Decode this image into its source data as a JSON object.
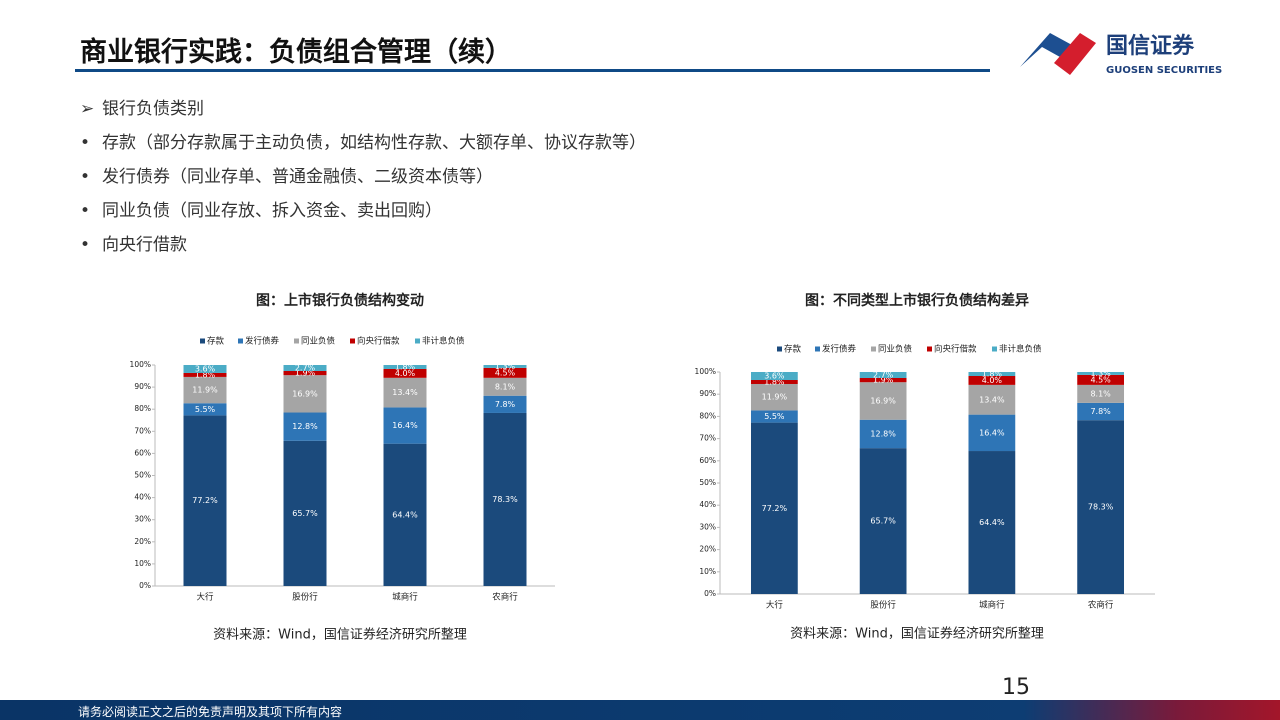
{
  "header": {
    "title": "商业银行实践：负债组合管理（续）",
    "logo_name": "国信证券",
    "logo_english": "GUOSEN SECURITIES"
  },
  "bullets": {
    "heading": "银行负债类别",
    "items": [
      "存款（部分存款属于主动负债，如结构性存款、大额存单、协议存款等）",
      "发行债券（同业存单、普通金融债、二级资本债等）",
      "同业负债（同业存放、拆入资金、卖出回购）",
      "向央行借款"
    ]
  },
  "footer": {
    "page": "15",
    "disclaimer": "请务必阅读正文之后的免责声明及其项下所有内容"
  },
  "chart_data": [
    {
      "type": "stacked_bar",
      "title": "图：上市银行负债结构变动",
      "source": "资料来源：Wind，国信证券经济研究所整理",
      "categories": [
        "大行",
        "股份行",
        "城商行",
        "农商行"
      ],
      "series": [
        {
          "name": "存款",
          "color": "#1b4a7c",
          "values": [
            77.2,
            65.7,
            64.4,
            78.3
          ],
          "value_labels": [
            "77.2%",
            "65.7%",
            "64.4%",
            "78.3%"
          ]
        },
        {
          "name": "发行债券",
          "color": "#2e75b6",
          "values": [
            5.5,
            12.8,
            16.4,
            7.8
          ],
          "value_labels": [
            "5.5%",
            "12.8%",
            "16.4%",
            "7.8%"
          ]
        },
        {
          "name": "同业负债",
          "color": "#a5a5a5",
          "values": [
            11.9,
            16.9,
            13.4,
            8.1
          ],
          "value_labels": [
            "11.9%",
            "16.9%",
            "13.4%",
            "8.1%"
          ]
        },
        {
          "name": "向央行借款",
          "color": "#c00000",
          "values": [
            1.8,
            1.9,
            4.0,
            4.5
          ],
          "value_labels": [
            "1.8%",
            "1.9%",
            "4.0%",
            "4.5%"
          ]
        },
        {
          "name": "非计息负债",
          "color": "#4bacc6",
          "values": [
            3.6,
            2.7,
            1.8,
            1.3
          ],
          "value_labels": [
            "3.6%",
            "2.7%",
            "1.8%",
            "1.3%"
          ]
        }
      ],
      "ylim": [
        0,
        100
      ],
      "yticks": [
        {
          "value": 0,
          "label": "0%"
        },
        {
          "value": 10,
          "label": "10%"
        },
        {
          "value": 20,
          "label": "20%"
        },
        {
          "value": 30,
          "label": "30%"
        },
        {
          "value": 40,
          "label": "40%"
        },
        {
          "value": 50,
          "label": "50%"
        },
        {
          "value": 60,
          "label": "60%"
        },
        {
          "value": 70,
          "label": "70%"
        },
        {
          "value": 80,
          "label": "80%"
        },
        {
          "value": 90,
          "label": "90%"
        },
        {
          "value": 100,
          "label": "100%"
        }
      ],
      "legend": "top"
    },
    {
      "type": "stacked_bar",
      "title": "图：不同类型上市银行负债结构差异",
      "source": "资料来源：Wind，国信证券经济研究所整理",
      "categories": [
        "大行",
        "股份行",
        "城商行",
        "农商行"
      ],
      "series": [
        {
          "name": "存款",
          "color": "#1b4a7c",
          "values": [
            77.2,
            65.7,
            64.4,
            78.3
          ],
          "value_labels": [
            "77.2%",
            "65.7%",
            "64.4%",
            "78.3%"
          ]
        },
        {
          "name": "发行债券",
          "color": "#2e75b6",
          "values": [
            5.5,
            12.8,
            16.4,
            7.8
          ],
          "value_labels": [
            "5.5%",
            "12.8%",
            "16.4%",
            "7.8%"
          ]
        },
        {
          "name": "同业负债",
          "color": "#a5a5a5",
          "values": [
            11.9,
            16.9,
            13.4,
            8.1
          ],
          "value_labels": [
            "11.9%",
            "16.9%",
            "13.4%",
            "8.1%"
          ]
        },
        {
          "name": "向央行借款",
          "color": "#c00000",
          "values": [
            1.8,
            1.9,
            4.0,
            4.5
          ],
          "value_labels": [
            "1.8%",
            "1.9%",
            "4.0%",
            "4.5%"
          ]
        },
        {
          "name": "非计息负债",
          "color": "#4bacc6",
          "values": [
            3.6,
            2.7,
            1.8,
            1.3
          ],
          "value_labels": [
            "3.6%",
            "2.7%",
            "1.8%",
            "1.3%"
          ]
        }
      ],
      "ylim": [
        0,
        100
      ],
      "yticks": [
        {
          "value": 0,
          "label": "0%"
        },
        {
          "value": 10,
          "label": "10%"
        },
        {
          "value": 20,
          "label": "20%"
        },
        {
          "value": 30,
          "label": "30%"
        },
        {
          "value": 40,
          "label": "40%"
        },
        {
          "value": 50,
          "label": "50%"
        },
        {
          "value": 60,
          "label": "60%"
        },
        {
          "value": 70,
          "label": "70%"
        },
        {
          "value": 80,
          "label": "80%"
        },
        {
          "value": 90,
          "label": "90%"
        },
        {
          "value": 100,
          "label": "100%"
        }
      ],
      "legend": "top"
    }
  ]
}
